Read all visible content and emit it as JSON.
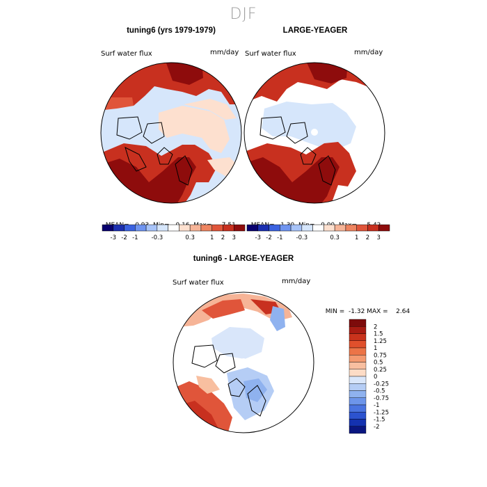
{
  "figure": {
    "title": "DJF"
  },
  "panels": [
    {
      "title": "tuning6 (yrs 1979-1979)",
      "variable": "Surf water flux",
      "units": "mm/day",
      "stats": {
        "mean_label": "MEAN=",
        "mean": "0.93",
        "min_label": "Min=",
        "min": "-0.16",
        "max_label": "Max=",
        "max": "7.51"
      },
      "colorbar_ticks": [
        "-3",
        "-2",
        "-1",
        "-0.3",
        "0.3",
        "1",
        "2",
        "3"
      ]
    },
    {
      "title": "LARGE-YEAGER",
      "variable": "Surf water flux",
      "units": "mm/day",
      "stats": {
        "mean_label": "MEAN=",
        "mean": "1.30",
        "min_label": "Min=",
        "min": "0.00",
        "max_label": "Max=",
        "max": "5.42"
      },
      "colorbar_ticks": [
        "-3",
        "-2",
        "-1",
        "-0.3",
        "0.3",
        "1",
        "2",
        "3"
      ]
    },
    {
      "title": "tuning6 - LARGE-YEAGER",
      "variable": "Surf water flux",
      "units": "mm/day",
      "stats": {
        "min_label": "MIN =",
        "min": "-1.32",
        "max_label": "MAX =",
        "max": "2.64"
      },
      "colorbar_ticks": [
        "2",
        "1.5",
        "1.25",
        "1",
        "0.75",
        "0.5",
        "0.25",
        "0",
        "-0.25",
        "-0.5",
        "-0.75",
        "-1",
        "-1.25",
        "-1.5",
        "-2"
      ]
    }
  ],
  "colors": {
    "abs_scale": [
      "#08006e",
      "#1b2fb0",
      "#3b62e0",
      "#6f94f0",
      "#a7c3f8",
      "#d6e6fb",
      "#ffffff",
      "#fde0cf",
      "#f6b497",
      "#ee8460",
      "#e0553a",
      "#c8301f",
      "#8e0c0c"
    ],
    "diff_scale": [
      "#7d0b0b",
      "#a81b12",
      "#c9331c",
      "#e0502c",
      "#ec7447",
      "#f49a70",
      "#f8bfa0",
      "#fddcc6",
      "#d9e6fa",
      "#b5cdf5",
      "#8fb2ef",
      "#6d95ea",
      "#4a74e0",
      "#2c53cf",
      "#1432b0",
      "#0a1680"
    ],
    "land_line": "#000000"
  }
}
